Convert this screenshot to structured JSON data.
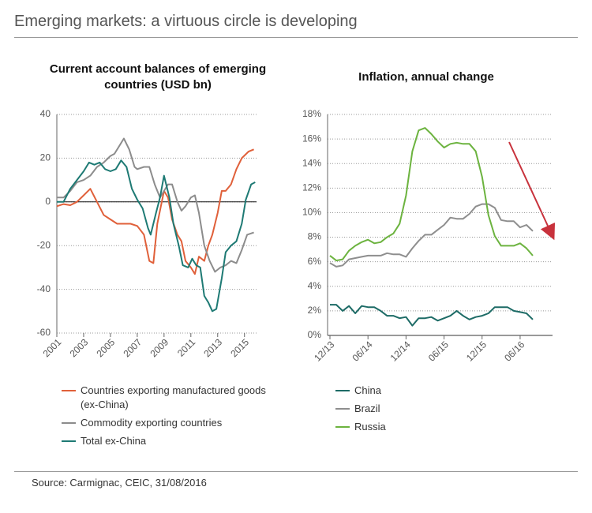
{
  "title": "Emerging markets: a virtuous circle is developing",
  "source": "Source: Carmignac, CEIC, 31/08/2016",
  "chart_data": [
    {
      "type": "line",
      "title": "Current account balances of emerging countries (USD bn)",
      "xlim": [
        2001,
        2015.9
      ],
      "xticks": [
        2001,
        2003,
        2005,
        2007,
        2009,
        2011,
        2013,
        2015
      ],
      "ylim": [
        -60,
        40
      ],
      "yticks": [
        -60,
        -40,
        -20,
        0,
        20,
        40
      ],
      "grid": true,
      "series": [
        {
          "name": "Countries exporting manufactured goods (ex-China)",
          "color": "#e0603a",
          "x": [
            2001,
            2001.5,
            2002,
            2002.5,
            2003,
            2003.5,
            2004,
            2004.5,
            2005,
            2005.5,
            2006,
            2006.5,
            2007,
            2007.5,
            2007.9,
            2008.2,
            2008.5,
            2009,
            2009.3,
            2009.6,
            2010,
            2010.3,
            2010.6,
            2011,
            2011.3,
            2011.6,
            2012,
            2012.3,
            2012.6,
            2013,
            2013.3,
            2013.6,
            2014,
            2014.4,
            2014.8,
            2015.3,
            2015.7
          ],
          "values": [
            -2,
            -1,
            -1.5,
            0,
            3,
            6,
            0,
            -6,
            -8,
            -10,
            -10,
            -10,
            -11,
            -15,
            -27,
            -28,
            -10,
            5,
            2,
            -8,
            -15,
            -18,
            -27,
            -30,
            -33,
            -25,
            -27,
            -20,
            -15,
            -5,
            5,
            5,
            8,
            15,
            20,
            23,
            24
          ]
        },
        {
          "name": "Commodity exporting countries",
          "color": "#8c8c8c",
          "x": [
            2001,
            2001.5,
            2002,
            2002.5,
            2003,
            2003.5,
            2004,
            2004.5,
            2005,
            2005.3,
            2005.6,
            2006,
            2006.4,
            2006.8,
            2007,
            2007.5,
            2007.9,
            2008.3,
            2008.7,
            2009,
            2009.3,
            2009.6,
            2010,
            2010.3,
            2010.6,
            2011,
            2011.3,
            2011.6,
            2012,
            2012.4,
            2012.8,
            2013.2,
            2013.6,
            2014,
            2014.4,
            2014.8,
            2015.2,
            2015.7
          ],
          "values": [
            2,
            2,
            5,
            9,
            10,
            12,
            16,
            18,
            21,
            22,
            25,
            29,
            24,
            16,
            15,
            16,
            16,
            8,
            2,
            5,
            8,
            8,
            0,
            -4,
            -2,
            2,
            3,
            -5,
            -20,
            -27,
            -32,
            -30,
            -29,
            -27,
            -28,
            -22,
            -15,
            -14
          ]
        },
        {
          "name": "Total ex-China",
          "color": "#1e7a74",
          "x": [
            2001,
            2001.5,
            2002,
            2002.5,
            2003,
            2003.4,
            2003.8,
            2004.2,
            2004.6,
            2005,
            2005.4,
            2005.8,
            2006.2,
            2006.6,
            2007,
            2007.4,
            2007.8,
            2008,
            2008.4,
            2008.7,
            2009,
            2009.4,
            2009.7,
            2010.1,
            2010.4,
            2010.8,
            2011.1,
            2011.4,
            2011.7,
            2012,
            2012.3,
            2012.6,
            2012.9,
            2013.3,
            2013.6,
            2014,
            2014.4,
            2014.8,
            2015.1,
            2015.5,
            2015.8
          ],
          "values": [
            0,
            0,
            6,
            10,
            14,
            18,
            17,
            18,
            15,
            14,
            15,
            19,
            16,
            6,
            1,
            -3,
            -12,
            -15,
            -5,
            2,
            12,
            2,
            -10,
            -20,
            -29,
            -30,
            -26,
            -29,
            -30,
            -43,
            -46,
            -50,
            -49,
            -35,
            -23,
            -20,
            -18,
            -10,
            1,
            8,
            9
          ]
        }
      ]
    },
    {
      "type": "line",
      "title": "Inflation, annual change",
      "categories": [
        "12/13",
        null,
        null,
        null,
        null,
        null,
        "06/14",
        null,
        null,
        null,
        null,
        null,
        "12/14",
        null,
        null,
        null,
        null,
        null,
        "06/15",
        null,
        null,
        null,
        null,
        null,
        "12/15",
        null,
        null,
        null,
        null,
        null,
        "06/16",
        null,
        null
      ],
      "ylim": [
        0,
        18
      ],
      "yticks": [
        {
          "value": 0,
          "label": "0%"
        },
        {
          "value": 2,
          "label": "2%"
        },
        {
          "value": 4,
          "label": "4%"
        },
        {
          "value": 6,
          "label": "6%"
        },
        {
          "value": 8,
          "label": "8%"
        },
        {
          "value": 10,
          "label": "10%"
        },
        {
          "value": 12,
          "label": "12%"
        },
        {
          "value": 14,
          "label": "14%"
        },
        {
          "value": 16,
          "label": "16%"
        },
        {
          "value": 18,
          "label": "18%"
        }
      ],
      "grid": true,
      "series": [
        {
          "name": "China",
          "color": "#1d6b66",
          "values": [
            2.5,
            2.5,
            2.0,
            2.4,
            1.8,
            2.4,
            2.3,
            2.3,
            2.0,
            1.6,
            1.6,
            1.4,
            1.5,
            0.8,
            1.4,
            1.4,
            1.5,
            1.2,
            1.4,
            1.6,
            2.0,
            1.6,
            1.3,
            1.5,
            1.6,
            1.8,
            2.3,
            2.3,
            2.3,
            2.0,
            1.9,
            1.8,
            1.3
          ]
        },
        {
          "name": "Brazil",
          "color": "#8e8e8e",
          "values": [
            5.9,
            5.6,
            5.7,
            6.2,
            6.3,
            6.4,
            6.5,
            6.5,
            6.5,
            6.7,
            6.6,
            6.6,
            6.4,
            7.1,
            7.7,
            8.2,
            8.2,
            8.6,
            9.0,
            9.6,
            9.5,
            9.5,
            9.9,
            10.5,
            10.7,
            10.7,
            10.4,
            9.4,
            9.3,
            9.3,
            8.8,
            9.0,
            8.5
          ]
        },
        {
          "name": "Russia",
          "color": "#6cb33f",
          "values": [
            6.5,
            6.1,
            6.2,
            6.9,
            7.3,
            7.6,
            7.8,
            7.5,
            7.6,
            8.0,
            8.3,
            9.1,
            11.4,
            15.0,
            16.7,
            16.9,
            16.4,
            15.8,
            15.3,
            15.6,
            15.7,
            15.6,
            15.6,
            15.0,
            12.9,
            9.8,
            8.1,
            7.3,
            7.3,
            7.3,
            7.5,
            7.1,
            6.5
          ]
        }
      ]
    }
  ]
}
